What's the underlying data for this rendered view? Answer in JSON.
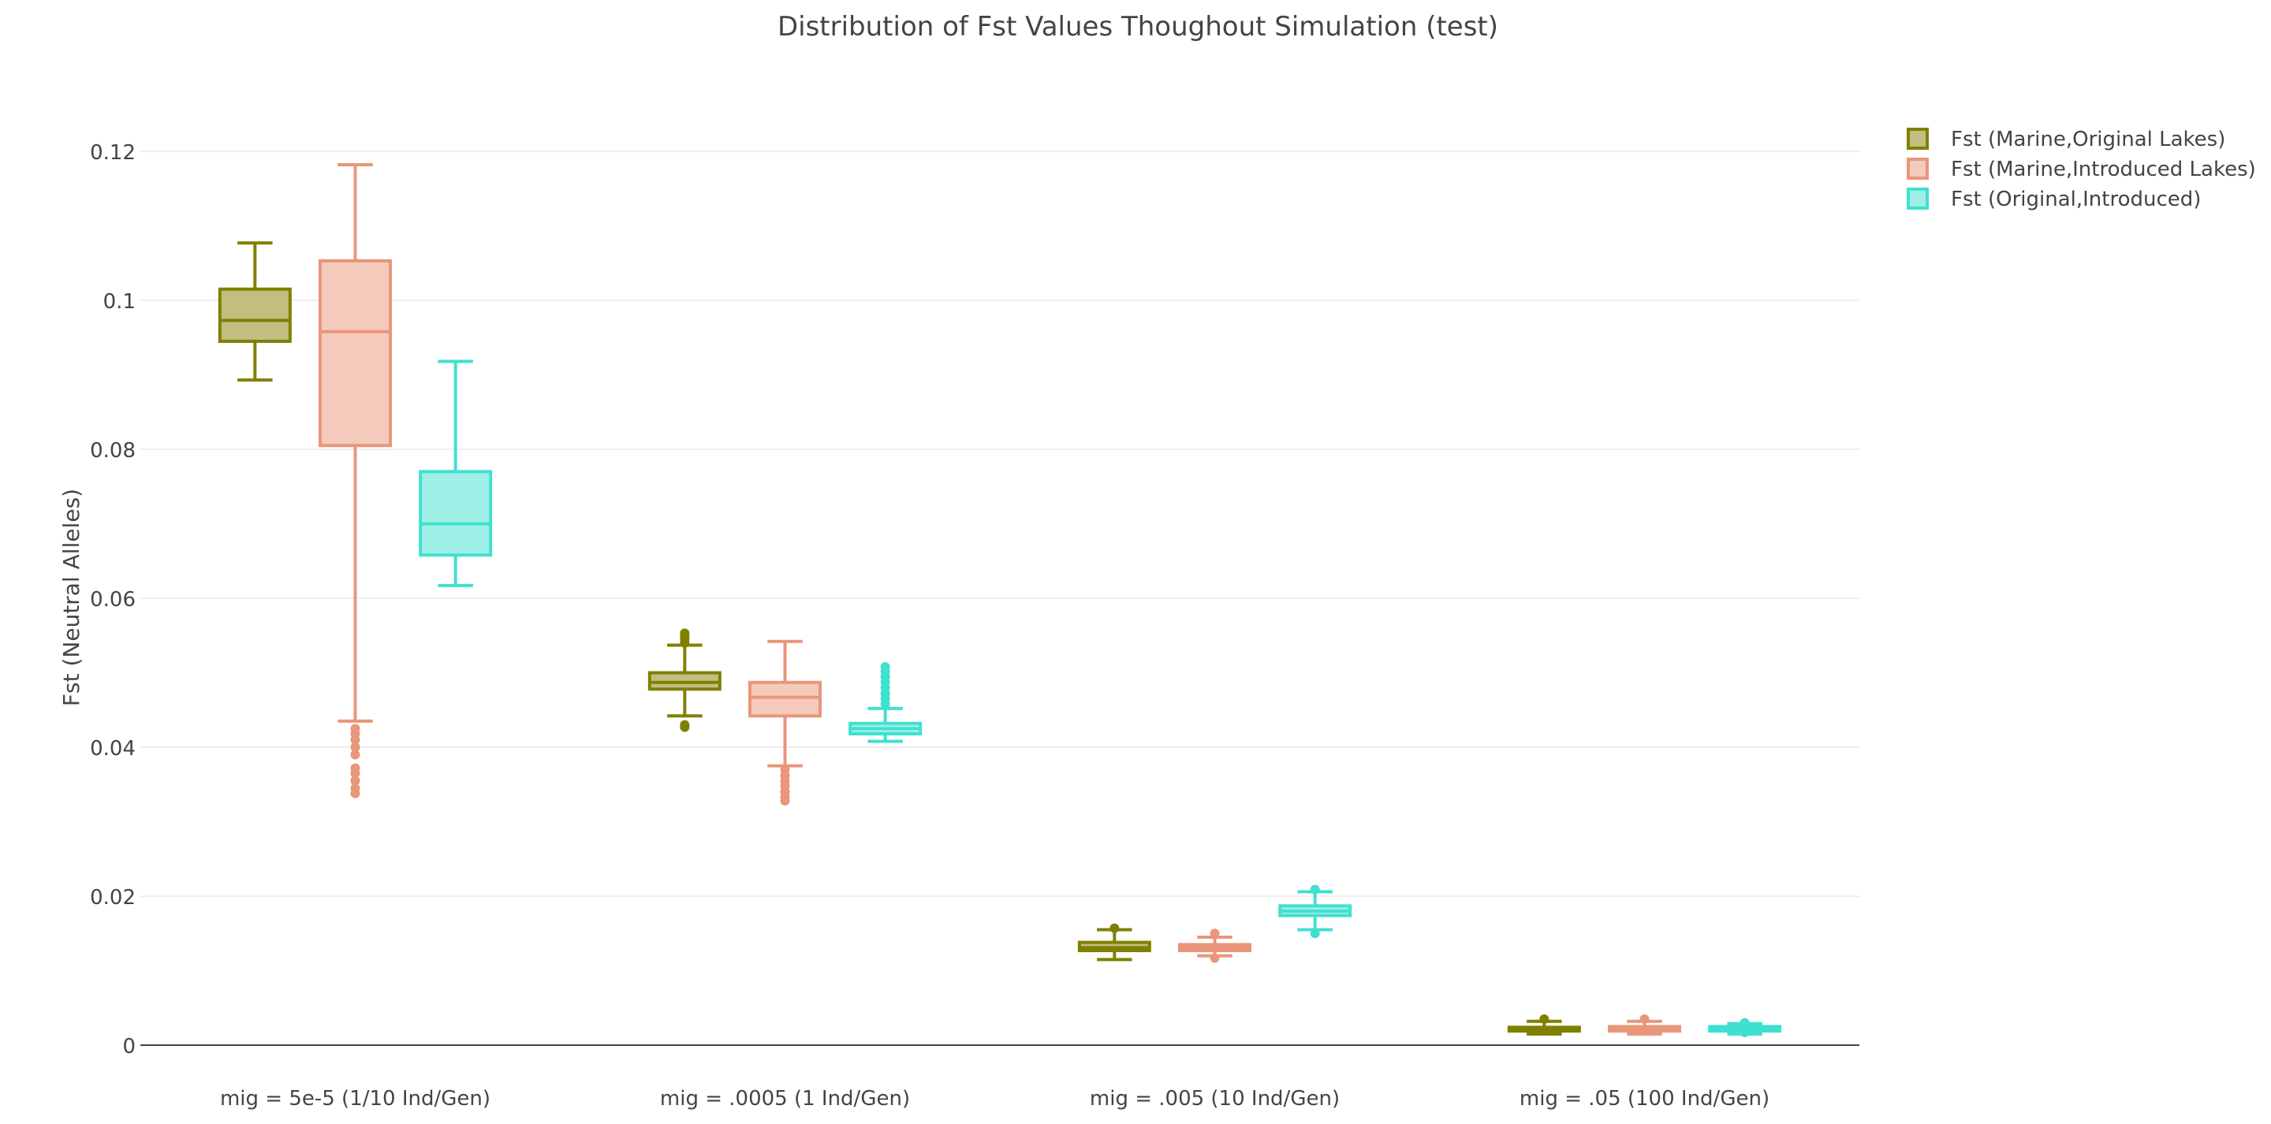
{
  "chart_data": {
    "type": "box",
    "title": "Distribution of Fst Values Thoughout Simulation (test)",
    "xlabel": "",
    "ylabel": "Fst (Neutral Alleles)",
    "ylim": [
      0,
      0.12
    ],
    "yticks": [
      0,
      0.02,
      0.04,
      0.06,
      0.08,
      0.1,
      0.12
    ],
    "ytick_labels": [
      "0",
      "0.02",
      "0.04",
      "0.06",
      "0.08",
      "0.1",
      "0.12"
    ],
    "grid": true,
    "legend_position": "top-right",
    "categories": [
      "mig = 5e-5 (1/10 Ind/Gen)",
      "mig = .0005 (1 Ind/Gen)",
      "mig = .005 (10 Ind/Gen)",
      "mig = .05 (100 Ind/Gen)"
    ],
    "series": [
      {
        "name": "Fst (Marine,Original Lakes)",
        "color": "#808000",
        "fill": "#c0bf80",
        "boxes": [
          {
            "min": 0.0893,
            "q1": 0.0945,
            "median": 0.0973,
            "q3": 0.1015,
            "max": 0.1077,
            "outliers": []
          },
          {
            "min": 0.0442,
            "q1": 0.0478,
            "median": 0.0487,
            "q3": 0.05,
            "max": 0.0537,
            "outliers": [
              0.043,
              0.0427,
              0.054,
              0.0545,
              0.055,
              0.0553
            ]
          },
          {
            "min": 0.0115,
            "q1": 0.0127,
            "median": 0.0131,
            "q3": 0.0138,
            "max": 0.0155,
            "outliers": [
              0.0157
            ]
          },
          {
            "min": 0.0015,
            "q1": 0.0019,
            "median": 0.0021,
            "q3": 0.0024,
            "max": 0.0032,
            "outliers": [
              0.0035
            ]
          }
        ]
      },
      {
        "name": "Fst (Marine,Introduced Lakes)",
        "color": "#e9967a",
        "fill": "#f4cabc",
        "boxes": [
          {
            "min": 0.0435,
            "q1": 0.0805,
            "median": 0.0958,
            "q3": 0.1053,
            "max": 0.1182,
            "outliers": [
              0.0425,
              0.0418,
              0.041,
              0.04,
              0.039,
              0.0372,
              0.0365,
              0.0355,
              0.0345,
              0.0338
            ]
          },
          {
            "min": 0.0375,
            "q1": 0.0442,
            "median": 0.0467,
            "q3": 0.0487,
            "max": 0.0542,
            "outliers": [
              0.037,
              0.0362,
              0.0355,
              0.0348,
              0.034,
              0.0333,
              0.0328
            ]
          },
          {
            "min": 0.012,
            "q1": 0.0127,
            "median": 0.0131,
            "q3": 0.0135,
            "max": 0.0145,
            "outliers": [
              0.0117,
              0.015
            ]
          },
          {
            "min": 0.0015,
            "q1": 0.0019,
            "median": 0.0022,
            "q3": 0.0025,
            "max": 0.0032,
            "outliers": [
              0.0035
            ]
          }
        ]
      },
      {
        "name": "Fst (Original,Introduced)",
        "color": "#40e0d0",
        "fill": "#a0efe7",
        "boxes": [
          {
            "min": 0.0617,
            "q1": 0.0658,
            "median": 0.07,
            "q3": 0.077,
            "max": 0.0918,
            "outliers": []
          },
          {
            "min": 0.0408,
            "q1": 0.0418,
            "median": 0.0425,
            "q3": 0.0432,
            "max": 0.0452,
            "outliers": [
              0.0458,
              0.0465,
              0.0472,
              0.048,
              0.0488,
              0.0495,
              0.0502,
              0.0508
            ]
          },
          {
            "min": 0.0155,
            "q1": 0.0174,
            "median": 0.018,
            "q3": 0.0187,
            "max": 0.0206,
            "outliers": [
              0.015,
              0.0209
            ]
          },
          {
            "min": 0.0015,
            "q1": 0.0019,
            "median": 0.0022,
            "q3": 0.0025,
            "max": 0.0029,
            "outliers": [
              0.0017,
              0.003
            ]
          }
        ]
      }
    ]
  }
}
